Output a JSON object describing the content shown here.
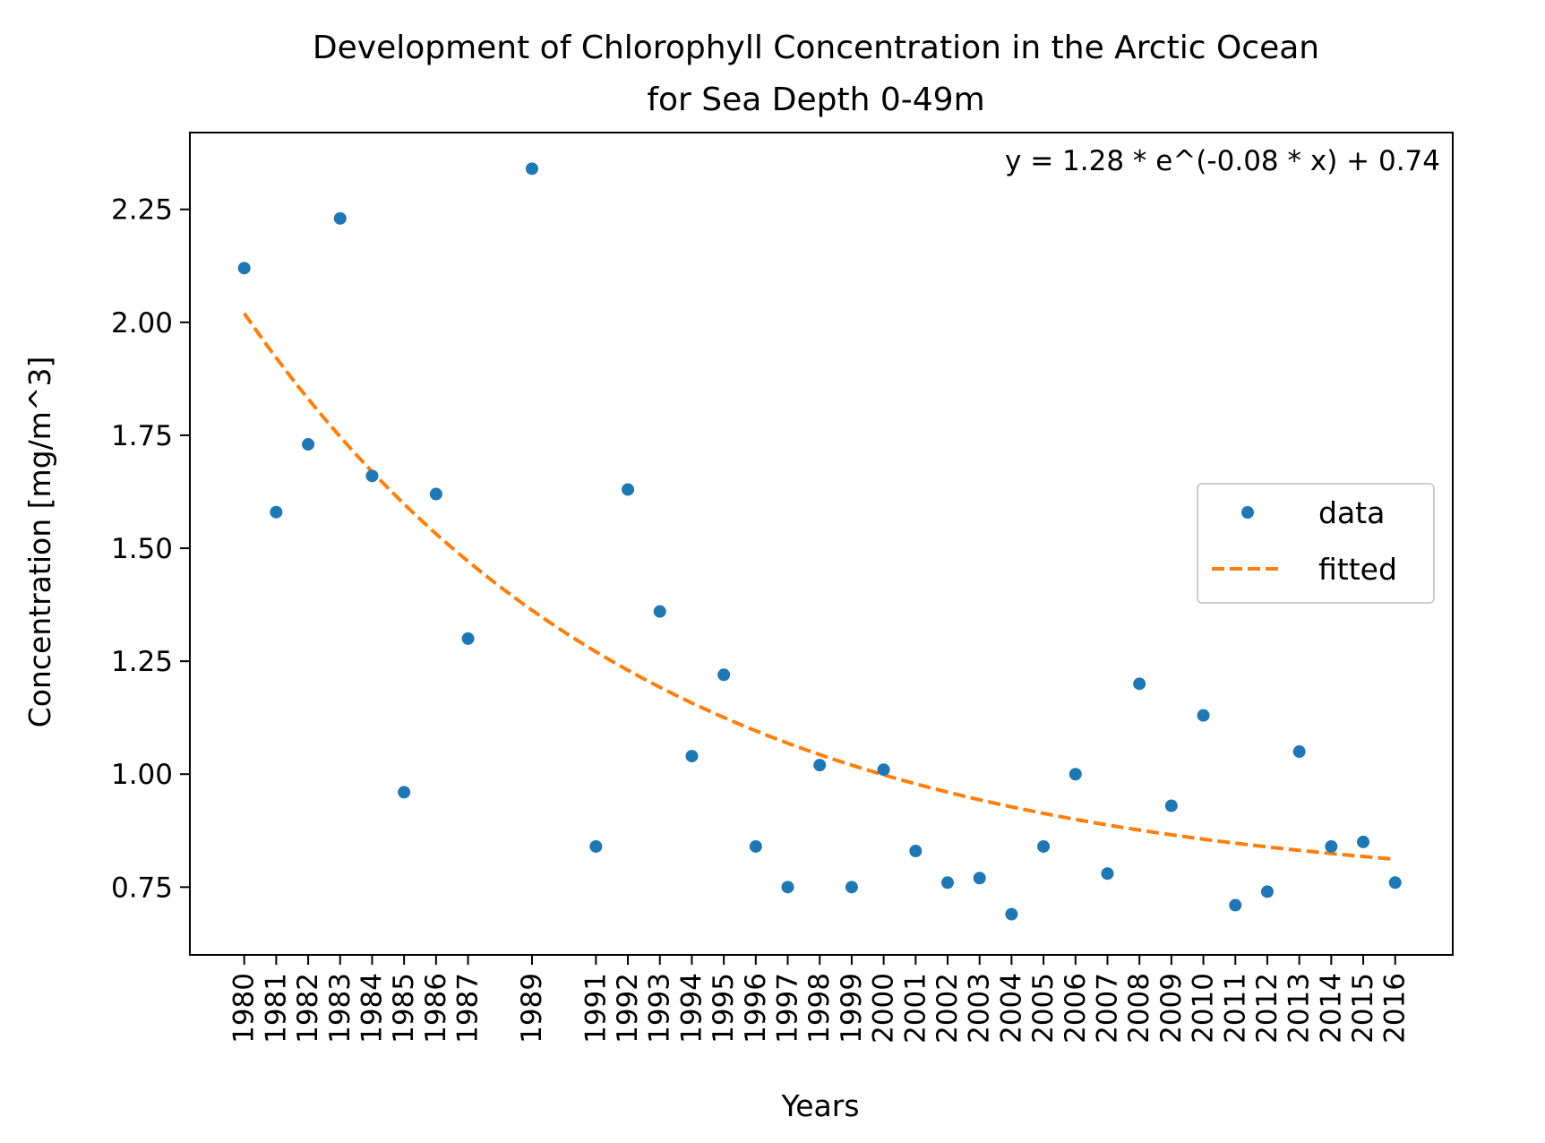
{
  "chart_data": {
    "type": "scatter",
    "title": "Development of Chlorophyll Concentration in the Arctic Ocean\nfor Sea Depth 0-49m",
    "xlabel": "Years",
    "ylabel": "Concentration [mg/m^3]",
    "annotation": "y = 1.28 * e^(-0.08 * x) + 0.74",
    "xlim": [
      1978.3,
      2017.8
    ],
    "ylim": [
      0.6,
      2.42
    ],
    "x_ticks": [
      1980,
      1981,
      1982,
      1983,
      1984,
      1985,
      1986,
      1987,
      1989,
      1991,
      1992,
      1993,
      1994,
      1995,
      1996,
      1997,
      1998,
      1999,
      2000,
      2001,
      2002,
      2003,
      2004,
      2005,
      2006,
      2007,
      2008,
      2009,
      2010,
      2011,
      2012,
      2013,
      2014,
      2015,
      2016
    ],
    "y_ticks": [
      "0.75",
      "1.00",
      "1.25",
      "1.50",
      "1.75",
      "2.00",
      "2.25"
    ],
    "legend_position": "center-right",
    "grid": false,
    "series": [
      {
        "name": "data",
        "style": "points",
        "color": "#1f77b4",
        "x": [
          1980,
          1981,
          1982,
          1983,
          1984,
          1985,
          1986,
          1987,
          1989,
          1991,
          1992,
          1993,
          1994,
          1995,
          1996,
          1997,
          1998,
          1999,
          2000,
          2001,
          2002,
          2003,
          2004,
          2005,
          2006,
          2007,
          2008,
          2009,
          2010,
          2011,
          2012,
          2013,
          2014,
          2015,
          2016
        ],
        "y": [
          2.12,
          1.58,
          1.73,
          2.23,
          1.66,
          0.96,
          1.62,
          1.3,
          2.34,
          0.84,
          1.63,
          1.36,
          1.04,
          1.22,
          0.84,
          0.75,
          1.02,
          0.75,
          1.01,
          0.83,
          0.76,
          0.77,
          0.69,
          0.84,
          1.0,
          0.78,
          1.2,
          0.93,
          1.13,
          0.71,
          0.74,
          1.05,
          0.84,
          0.85,
          0.76
        ]
      },
      {
        "name": "fitted",
        "style": "dashed-line",
        "color": "#ff7f0e",
        "fit": {
          "a": 1.28,
          "b": -0.08,
          "c": 0.74,
          "x0": 1980
        }
      }
    ]
  }
}
